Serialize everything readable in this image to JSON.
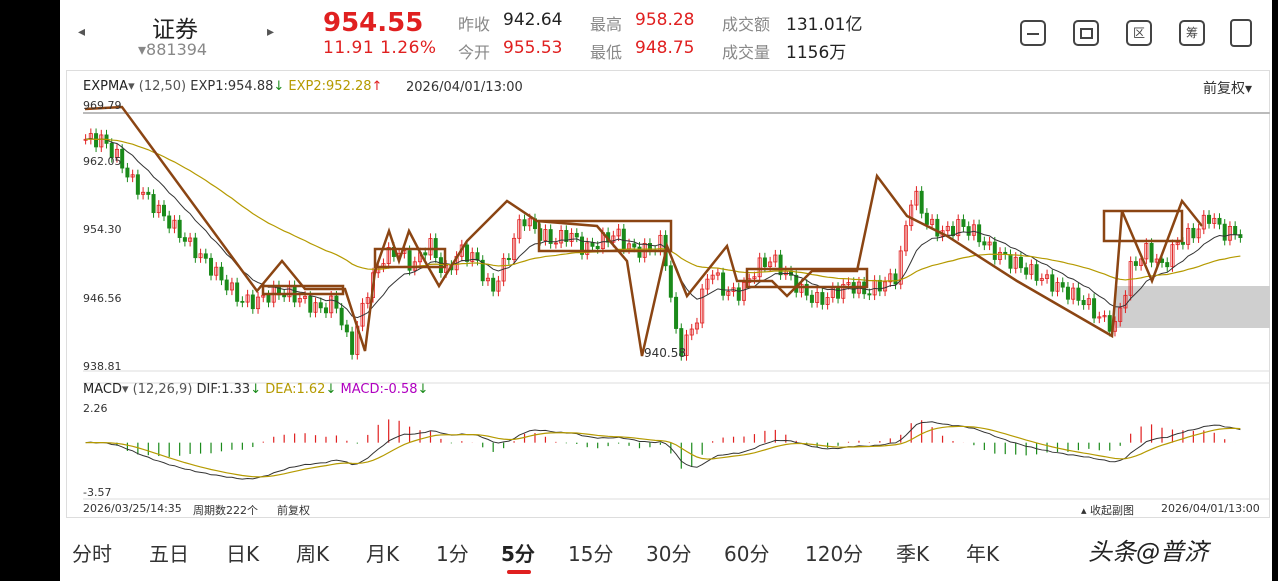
{
  "header": {
    "name": "证券",
    "code": "▾881394",
    "price": "954.55",
    "change": "11.91  1.26%",
    "stats": {
      "prev_close_label": "昨收",
      "prev_close": "942.64",
      "open_label": "今开",
      "open": "955.53",
      "high_label": "最高",
      "high": "958.28",
      "low_label": "最低",
      "low": "948.75",
      "amount_label": "成交额",
      "amount": "131.01亿",
      "volume_label": "成交量",
      "volume": "1156万"
    },
    "icons": [
      "split-icon",
      "draw-icon",
      "range-icon",
      "chip-icon",
      "rotate-icon"
    ],
    "icon_text": {
      "range": "区",
      "chip": "筹"
    }
  },
  "main": {
    "indicator": "EXPMA",
    "params": "(12,50)",
    "exp1": "EXP1:954.88",
    "exp2": "EXP2:952.28",
    "datetime": "2026/04/01/13:00",
    "adjust": "前复权▾",
    "y_labels": [
      "969.79",
      "962.05",
      "954.30",
      "946.56",
      "938.81"
    ],
    "low_marker": "940.58"
  },
  "macd": {
    "indicator": "MACD",
    "params": "(12,26,9)",
    "dif": "DIF:1.33",
    "dea": "DEA:1.62",
    "macd": "MACD:-0.58",
    "y_top": "2.26",
    "y_bottom": "-3.57"
  },
  "footer": {
    "start": "2026/03/25/14:35",
    "period_count": "周期数222个",
    "adjust": "前复权",
    "collapse": "收起副图",
    "end": "2026/04/01/13:00"
  },
  "tabs": [
    {
      "label": "分时"
    },
    {
      "label": "五日"
    },
    {
      "label": "日K"
    },
    {
      "label": "周K"
    },
    {
      "label": "月K"
    },
    {
      "label": "1分"
    },
    {
      "label": "5分",
      "active": true
    },
    {
      "label": "15分"
    },
    {
      "label": "30分"
    },
    {
      "label": "60分"
    },
    {
      "label": "120分"
    },
    {
      "label": "季K"
    },
    {
      "label": "年K"
    }
  ],
  "watermark": "头条@普济",
  "colors": {
    "up": "#e02020",
    "down": "#1a8a1a",
    "exp1": "#333333",
    "exp2": "#b59a00",
    "annot": "#8b4513"
  },
  "chart_data": {
    "type": "candlestick",
    "period": "5分",
    "ylim": [
      938.81,
      969.79
    ],
    "y_ticks": [
      969.79,
      962.05,
      954.3,
      946.56,
      938.81
    ],
    "x_range": [
      "2026/03/25/14:35",
      "2026/04/01/13:00"
    ],
    "close_path": [
      966,
      966,
      964,
      961,
      959,
      957,
      955,
      953,
      951,
      949,
      947,
      947,
      948,
      948,
      947,
      946,
      947,
      941,
      948,
      952,
      953,
      951,
      954,
      950,
      953,
      952,
      948,
      952,
      957,
      955,
      954,
      955,
      953,
      954,
      955,
      953,
      953,
      954,
      941,
      944,
      951,
      948,
      948,
      951,
      952,
      950,
      948,
      947,
      948,
      949,
      948,
      949,
      950,
      960,
      956,
      955,
      956,
      955,
      953,
      952,
      951,
      950,
      949,
      948,
      947,
      945,
      944,
      951,
      953,
      951,
      954,
      955,
      957,
      955,
      955
    ],
    "exp1_last": 954.88,
    "exp2_last": 952.28,
    "low_marker": 940.58,
    "macd": {
      "ylim": [
        -3.57,
        2.26
      ],
      "dif": 1.33,
      "dea": 1.62,
      "macd": -0.58
    }
  }
}
